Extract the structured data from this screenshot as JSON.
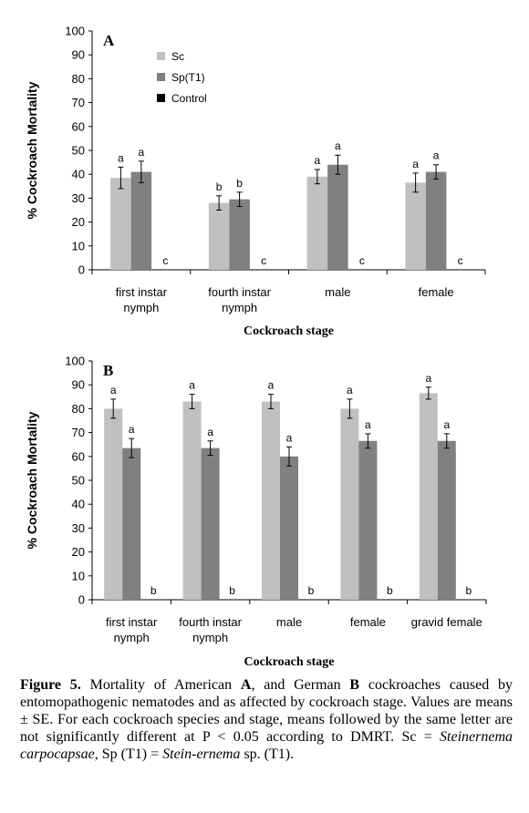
{
  "chart_data": [
    {
      "type": "bar",
      "panel": "A",
      "categories": [
        [
          "first instar",
          "nymph"
        ],
        [
          "fourth instar",
          "nymph"
        ],
        [
          "male"
        ],
        [
          "female"
        ]
      ],
      "series": [
        {
          "name": "Sc",
          "color": "#c0c0c0",
          "values": [
            38.5,
            28.0,
            39.0,
            36.5
          ],
          "errors": [
            4.5,
            3.0,
            3.0,
            4.0
          ],
          "letters": [
            "a",
            "b",
            "a",
            "a"
          ]
        },
        {
          "name": "Sp(T1)",
          "color": "#808080",
          "values": [
            41.0,
            29.5,
            44.0,
            41.0
          ],
          "errors": [
            4.5,
            3.0,
            4.0,
            3.0
          ],
          "letters": [
            "a",
            "b",
            "a",
            "a"
          ]
        },
        {
          "name": "Control",
          "color": "#000000",
          "values": [
            0,
            0,
            0,
            0
          ],
          "errors": [
            0,
            0,
            0,
            0
          ],
          "letters": [
            "c",
            "c",
            "c",
            "c"
          ]
        }
      ],
      "ylabel": "% Cockroach Mortality",
      "xlabel": "Cockroach stage",
      "ylim": [
        0,
        100
      ],
      "yticks": [
        0,
        10,
        20,
        30,
        40,
        50,
        60,
        70,
        80,
        90,
        100
      ],
      "legend": "top-left"
    },
    {
      "type": "bar",
      "panel": "B",
      "categories": [
        [
          "first instar",
          "nymph"
        ],
        [
          "fourth instar",
          "nymph"
        ],
        [
          "male"
        ],
        [
          "female"
        ],
        [
          "gravid female"
        ]
      ],
      "series": [
        {
          "name": "Sc",
          "color": "#c0c0c0",
          "values": [
            80.0,
            83.0,
            83.0,
            80.0,
            86.5
          ],
          "errors": [
            4.0,
            3.0,
            3.0,
            4.0,
            2.5
          ],
          "letters": [
            "a",
            "a",
            "a",
            "a",
            "a"
          ]
        },
        {
          "name": "Sp(T1)",
          "color": "#808080",
          "values": [
            63.5,
            63.5,
            60.0,
            66.5,
            66.5
          ],
          "errors": [
            4.0,
            3.0,
            4.0,
            3.0,
            3.0
          ],
          "letters": [
            "a",
            "a",
            "a",
            "a",
            "a"
          ]
        },
        {
          "name": "Control",
          "color": "#000000",
          "values": [
            0,
            0,
            0,
            0,
            0
          ],
          "errors": [
            0,
            0,
            0,
            0,
            0
          ],
          "letters": [
            "b",
            "b",
            "b",
            "b",
            "b"
          ]
        }
      ],
      "ylabel": "% Cockroach Mortality",
      "xlabel": "Cockroach stage",
      "ylim": [
        0,
        100
      ],
      "yticks": [
        0,
        10,
        20,
        30,
        40,
        50,
        60,
        70,
        80,
        90,
        100
      ],
      "legend": "none"
    }
  ],
  "caption": {
    "label": "Figure 5.",
    "t1": " Mortality of American ",
    "a": "A",
    "t2": ", and German ",
    "b": "B",
    "t3": " cockroaches caused by entomopathogenic nematodes and as affected by cockroach stage. Values are means ± SE. For each cockroach species and stage, means followed by the same letter are not significantly different at P < 0.05 according to DMRT. Sc = ",
    "sc_name": "Steinernema carpocapsae",
    "t4": ", Sp (T1) = ",
    "sp_name": "Stein-ernema",
    "t5": " sp. (T1)."
  }
}
